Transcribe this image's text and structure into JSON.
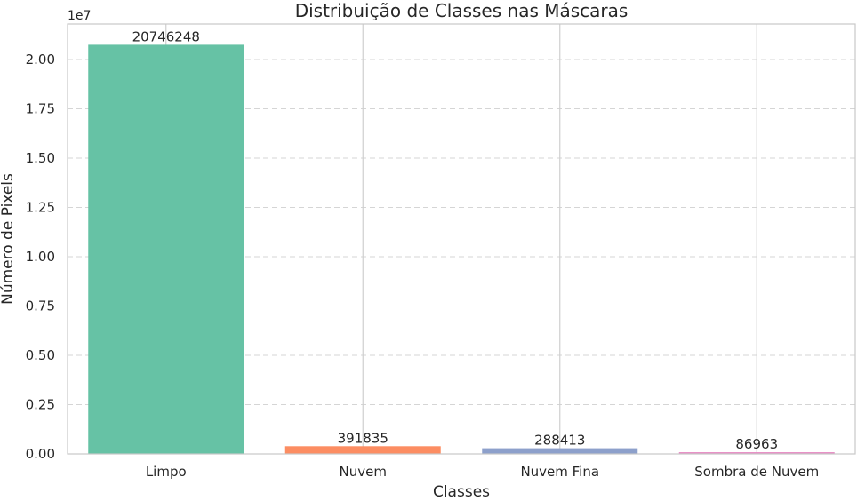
{
  "chart_data": {
    "type": "bar",
    "title": "Distribuição de Classes nas Máscaras",
    "xlabel": "Classes",
    "ylabel": "Número de Pixels",
    "y_offset_text": "1e7",
    "categories": [
      "Limpo",
      "Nuvem",
      "Nuvem Fina",
      "Sombra de Nuvem"
    ],
    "values": [
      20746248,
      391835,
      288413,
      86963
    ],
    "value_labels": [
      "20746248",
      "391835",
      "288413",
      "86963"
    ],
    "colors": [
      "#66c2a5",
      "#fc8d62",
      "#8da0cb",
      "#e78ac3"
    ],
    "ylim": [
      0,
      21800000
    ],
    "yticks": [
      0,
      2500000,
      5000000,
      7500000,
      10000000,
      12500000,
      15000000,
      17500000,
      20000000
    ],
    "ytick_labels": [
      "0.00",
      "0.25",
      "0.50",
      "0.75",
      "1.00",
      "1.25",
      "1.50",
      "1.75",
      "2.00"
    ],
    "grid": true
  }
}
